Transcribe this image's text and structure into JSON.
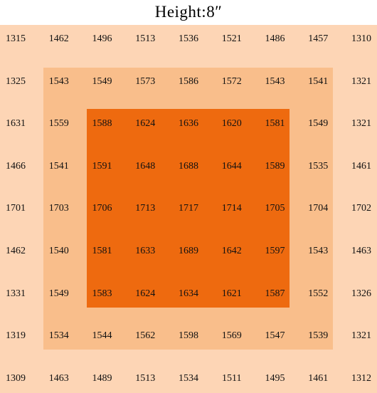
{
  "title": "Height:8″",
  "table": {
    "rows": [
      [
        "1315",
        "1462",
        "1496",
        "1513",
        "1536",
        "1521",
        "1486",
        "1457",
        "1310"
      ],
      [
        "1325",
        "1543",
        "1549",
        "1573",
        "1586",
        "1572",
        "1543",
        "1541",
        "1321"
      ],
      [
        "1631",
        "1559",
        "1588",
        "1624",
        "1636",
        "1620",
        "1581",
        "1549",
        "1321"
      ],
      [
        "1466",
        "1541",
        "1591",
        "1648",
        "1688",
        "1644",
        "1589",
        "1535",
        "1461"
      ],
      [
        "1701",
        "1703",
        "1706",
        "1713",
        "1717",
        "1714",
        "1705",
        "1704",
        "1702"
      ],
      [
        "1462",
        "1540",
        "1581",
        "1633",
        "1689",
        "1642",
        "1597",
        "1543",
        "1463"
      ],
      [
        "1331",
        "1549",
        "1583",
        "1624",
        "1634",
        "1621",
        "1587",
        "1552",
        "1326"
      ],
      [
        "1319",
        "1534",
        "1544",
        "1562",
        "1598",
        "1569",
        "1547",
        "1539",
        "1321"
      ],
      [
        "1309",
        "1463",
        "1489",
        "1513",
        "1534",
        "1511",
        "1495",
        "1461",
        "1312"
      ]
    ]
  }
}
